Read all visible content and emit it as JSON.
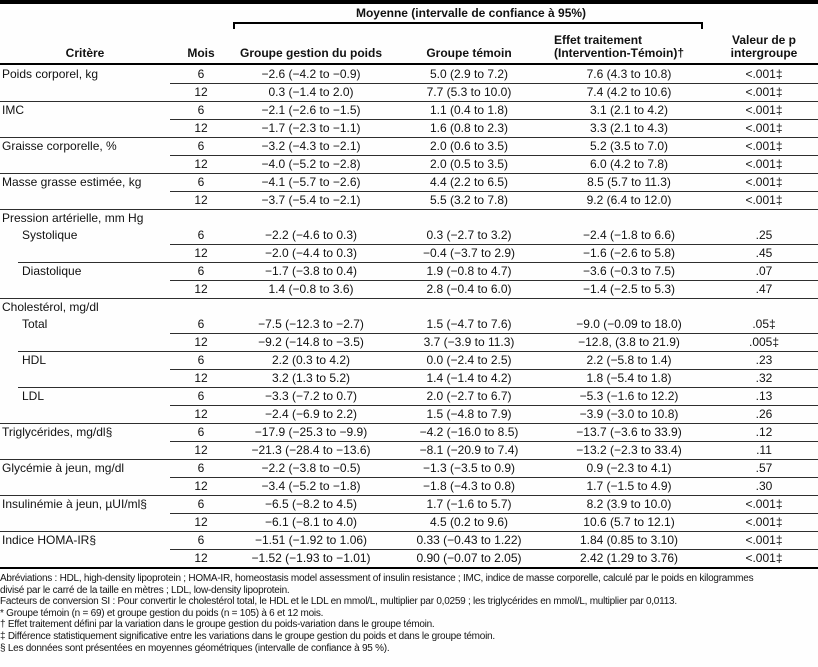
{
  "header": {
    "spanner": "Moyenne (intervalle de confiance à 95%)",
    "col_critere": "Critère",
    "col_mois": "Mois",
    "col_weight_group": "Groupe gestion du poids",
    "col_control_group": "Groupe témoin",
    "col_treatment_effect": "Effet traitement\n(Intervention-Témoin)†",
    "col_p_value": "Valeur de p\nintergroupe"
  },
  "table": {
    "rows": [
      {
        "type": "data",
        "label": "Poids corporel, kg",
        "indent": false,
        "mois": "6",
        "weight_group": "−2.6 (−4.2 to −0.9)",
        "control_group": "5.0 (2.9 to 7.2)",
        "treatment_effect": "7.6 (4.3 to 10.8)",
        "p_value": "<.001‡",
        "rule": "none"
      },
      {
        "type": "data",
        "label": "",
        "indent": false,
        "mois": "12",
        "weight_group": "0.3 (−1.4 to 2.0)",
        "control_group": "7.7 (5.3 to 10.0)",
        "treatment_effect": "7.4 (4.2 to 10.6)",
        "p_value": "<.001‡",
        "rule": "mois"
      },
      {
        "type": "data",
        "label": "IMC",
        "indent": false,
        "mois": "6",
        "weight_group": "−2.1 (−2.6 to −1.5)",
        "control_group": "1.1 (0.4 to 1.8)",
        "treatment_effect": "3.1 (2.1 to 4.2)",
        "p_value": "<.001‡",
        "rule": "full"
      },
      {
        "type": "data",
        "label": "",
        "indent": false,
        "mois": "12",
        "weight_group": "−1.7 (−2.3 to −1.1)",
        "control_group": "1.6 (0.8 to 2.3)",
        "treatment_effect": "3.3 (2.1 to 4.3)",
        "p_value": "<.001‡",
        "rule": "mois"
      },
      {
        "type": "data",
        "label": "Graisse corporelle, %",
        "indent": false,
        "mois": "6",
        "weight_group": "−3.2 (−4.3 to −2.1)",
        "control_group": "2.0 (0.6 to 3.5)",
        "treatment_effect": "5.2 (3.5 to 7.0)",
        "p_value": "<.001‡",
        "rule": "full"
      },
      {
        "type": "data",
        "label": "",
        "indent": false,
        "mois": "12",
        "weight_group": "−4.0 (−5.2 to −2.8)",
        "control_group": "2.0 (0.5 to 3.5)",
        "treatment_effect": "6.0 (4.2 to 7.8)",
        "p_value": "<.001‡",
        "rule": "mois"
      },
      {
        "type": "data",
        "label": "Masse grasse estimée, kg",
        "indent": false,
        "mois": "6",
        "weight_group": "−4.1 (−5.7 to −2.6)",
        "control_group": "4.4 (2.2 to 6.5)",
        "treatment_effect": "8.5 (5.7 to 11.3)",
        "p_value": "<.001‡",
        "rule": "full"
      },
      {
        "type": "data",
        "label": "",
        "indent": false,
        "mois": "12",
        "weight_group": "−3.7 (−5.4 to −2.1)",
        "control_group": "5.5 (3.2 to 7.8)",
        "treatment_effect": "9.2 (6.4 to 12.0)",
        "p_value": "<.001‡",
        "rule": "mois"
      },
      {
        "type": "section",
        "label": "Pression artérielle, mm Hg",
        "rule": "full"
      },
      {
        "type": "data",
        "label": "Systolique",
        "indent": true,
        "mois": "6",
        "weight_group": "−2.2 (−4.6 to 0.3)",
        "control_group": "0.3 (−2.7 to 3.2)",
        "treatment_effect": "−2.4 (−1.8 to 6.6)",
        "p_value": ".25",
        "rule": "none"
      },
      {
        "type": "data",
        "label": "",
        "indent": false,
        "mois": "12",
        "weight_group": "−2.0 (−4.4 to 0.3)",
        "control_group": "−0.4 (−3.7 to 2.9)",
        "treatment_effect": "−1.6 (−2.6 to 5.8)",
        "p_value": ".45",
        "rule": "mois"
      },
      {
        "type": "data",
        "label": "Diastolique",
        "indent": true,
        "mois": "6",
        "weight_group": "−1.7 (−3.8 to 0.4)",
        "control_group": "1.9 (−0.8 to 4.7)",
        "treatment_effect": "−3.6 (−0.3 to 7.5)",
        "p_value": ".07",
        "rule": "indent"
      },
      {
        "type": "data",
        "label": "",
        "indent": false,
        "mois": "12",
        "weight_group": "1.4 (−0.8 to 3.6)",
        "control_group": "2.8 (−0.4 to 6.0)",
        "treatment_effect": "−1.4 (−2.5 to 5.3)",
        "p_value": ".47",
        "rule": "mois"
      },
      {
        "type": "section",
        "label": "Cholestérol, mg/dl",
        "rule": "full"
      },
      {
        "type": "data",
        "label": "Total",
        "indent": true,
        "mois": "6",
        "weight_group": "−7.5 (−12.3 to −2.7)",
        "control_group": "1.5 (−4.7 to 7.6)",
        "treatment_effect": "−9.0 (−0.09 to 18.0)",
        "p_value": ".05‡",
        "rule": "none"
      },
      {
        "type": "data",
        "label": "",
        "indent": false,
        "mois": "12",
        "weight_group": "−9.2 (−14.8 to −3.5)",
        "control_group": "3.7 (−3.9 to 11.3)",
        "treatment_effect": "−12.8, (3.8 to 21.9)",
        "p_value": ".005‡",
        "rule": "mois"
      },
      {
        "type": "data",
        "label": "HDL",
        "indent": true,
        "mois": "6",
        "weight_group": "2.2 (0.3 to 4.2)",
        "control_group": "0.0 (−2.4 to 2.5)",
        "treatment_effect": "2.2 (−5.8 to 1.4)",
        "p_value": ".23",
        "rule": "indent"
      },
      {
        "type": "data",
        "label": "",
        "indent": false,
        "mois": "12",
        "weight_group": "3.2 (1.3 to 5.2)",
        "control_group": "1.4 (−1.4 to 4.2)",
        "treatment_effect": "1.8 (−5.4 to 1.8)",
        "p_value": ".32",
        "rule": "mois"
      },
      {
        "type": "data",
        "label": "LDL",
        "indent": true,
        "mois": "6",
        "weight_group": "−3.3 (−7.2 to 0.7)",
        "control_group": "2.0 (−2.7 to 6.7)",
        "treatment_effect": "−5.3 (−1.6 to 12.2)",
        "p_value": ".13",
        "rule": "indent"
      },
      {
        "type": "data",
        "label": "",
        "indent": false,
        "mois": "12",
        "weight_group": "−2.4 (−6.9 to 2.2)",
        "control_group": "1.5 (−4.8 to 7.9)",
        "treatment_effect": "−3.9 (−3.0 to 10.8)",
        "p_value": ".26",
        "rule": "mois"
      },
      {
        "type": "data",
        "label": "Triglycérides, mg/dl§",
        "indent": false,
        "mois": "6",
        "weight_group": "−17.9 (−25.3 to −9.9)",
        "control_group": "−4.2 (−16.0 to 8.5)",
        "treatment_effect": "−13.7 (−3.6 to 33.9)",
        "p_value": ".12",
        "rule": "full"
      },
      {
        "type": "data",
        "label": "",
        "indent": false,
        "mois": "12",
        "weight_group": "−21.3 (−28.4 to −13.6)",
        "control_group": "−8.1 (−20.9 to 7.4)",
        "treatment_effect": "−13.2 (−2.3 to 33.4)",
        "p_value": ".11",
        "rule": "mois"
      },
      {
        "type": "data",
        "label": "Glycémie à jeun, mg/dl",
        "indent": false,
        "mois": "6",
        "weight_group": "−2.2 (−3.8 to −0.5)",
        "control_group": "−1.3 (−3.5 to 0.9)",
        "treatment_effect": "0.9 (−2.3 to 4.1)",
        "p_value": ".57",
        "rule": "full"
      },
      {
        "type": "data",
        "label": "",
        "indent": false,
        "mois": "12",
        "weight_group": "−3.4 (−5.2 to −1.8)",
        "control_group": "−1.8 (−4.3 to 0.8)",
        "treatment_effect": "1.7 (−1.5 to 4.9)",
        "p_value": ".30",
        "rule": "mois"
      },
      {
        "type": "data",
        "label": "Insulinémie à jeun, µUI/ml§",
        "indent": false,
        "mois": "6",
        "weight_group": "−6.5 (−8.2 to 4.5)",
        "control_group": "1.7 (−1.6 to 5.7)",
        "treatment_effect": "8.2 (3.9 to 10.0)",
        "p_value": "<.001‡",
        "rule": "full"
      },
      {
        "type": "data",
        "label": "",
        "indent": false,
        "mois": "12",
        "weight_group": "−6.1 (−8.1 to 4.0)",
        "control_group": "4.5 (0.2 to 9.6)",
        "treatment_effect": "10.6 (5.7 to 12.1)",
        "p_value": "<.001‡",
        "rule": "mois"
      },
      {
        "type": "data",
        "label": "Indice HOMA-IR§",
        "indent": false,
        "mois": "6",
        "weight_group": "−1.51 (−1.92 to 1.06)",
        "control_group": "0.33 (−0.43 to 1.22)",
        "treatment_effect": "1.84 (0.85 to 3.10)",
        "p_value": "<.001‡",
        "rule": "full"
      },
      {
        "type": "data",
        "label": "",
        "indent": false,
        "mois": "12",
        "weight_group": "−1.52 (−1.93 to −1.01)",
        "control_group": "0.90 (−0.07 to 2.05)",
        "treatment_effect": "2.42 (1.29 to 3.76)",
        "p_value": "<.001‡",
        "rule": "mois"
      }
    ]
  },
  "footnotes": {
    "lines": [
      "Abréviations : HDL, high-density lipoprotein ; HOMA-IR, homeostasis model assessment of insulin resistance ; IMC, indice de masse corporelle, calculé par le poids en kilogrammes",
      "divisé par le carré de la taille en mètres ; LDL, low-density lipoprotein.",
      "Facteurs de conversion SI : Pour convertir le cholestérol total, le HDL et le LDL en mmol/L, multiplier par 0,0259 ; les triglycérides en mmol/L, multiplier par 0,0113.",
      "* Groupe témoin (n = 69) et groupe gestion du poids (n = 105) à 6 et 12 mois.",
      "† Effet traitement défini par la variation dans le groupe gestion du poids-variation dans le groupe témoin.",
      "‡ Différence statistiquement significative entre les variations dans le groupe gestion du poids et dans le groupe témoin.",
      "§ Les données sont présentées en moyennes géométriques (intervalle de confiance à 95 %)."
    ]
  },
  "colors": {
    "rule": "#2e2e2e",
    "heavy_rule": "#000000",
    "text": "#111111",
    "background": "#fefefe"
  }
}
